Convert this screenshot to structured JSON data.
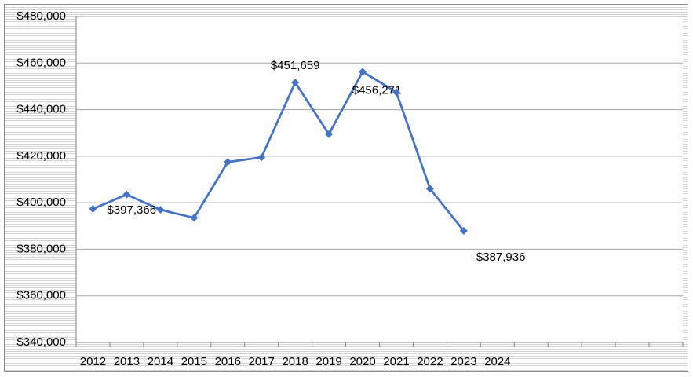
{
  "chart_data": {
    "type": "line",
    "categories": [
      "2012",
      "2013",
      "2014",
      "2015",
      "2016",
      "2017",
      "2018",
      "2019",
      "2020",
      "2021",
      "2022",
      "2023",
      "2024",
      null,
      null,
      null,
      null,
      null
    ],
    "series": [
      {
        "color": "#4472c4",
        "values": [
          397366,
          403500,
          397000,
          393500,
          417500,
          419500,
          451659,
          429500,
          456271,
          447500,
          406000,
          387936,
          null,
          null,
          null,
          null,
          null,
          null
        ],
        "value_labels": [
          "$397,366",
          null,
          null,
          null,
          null,
          null,
          "$451,659",
          null,
          "$456,271",
          null,
          null,
          "$387,936",
          null,
          null,
          null,
          null,
          null,
          null
        ]
      }
    ],
    "ylim": [
      340000,
      480000
    ],
    "yticks": [
      {
        "value": 340000,
        "label": "$340,000"
      },
      {
        "value": 360000,
        "label": "$360,000"
      },
      {
        "value": 380000,
        "label": "$380,000"
      },
      {
        "value": 400000,
        "label": "$400,000"
      },
      {
        "value": 420000,
        "label": "$420,000"
      },
      {
        "value": 440000,
        "label": "$440,000"
      },
      {
        "value": 460000,
        "label": "$460,000"
      },
      {
        "value": 480000,
        "label": "$480,000"
      }
    ],
    "grid": true
  }
}
